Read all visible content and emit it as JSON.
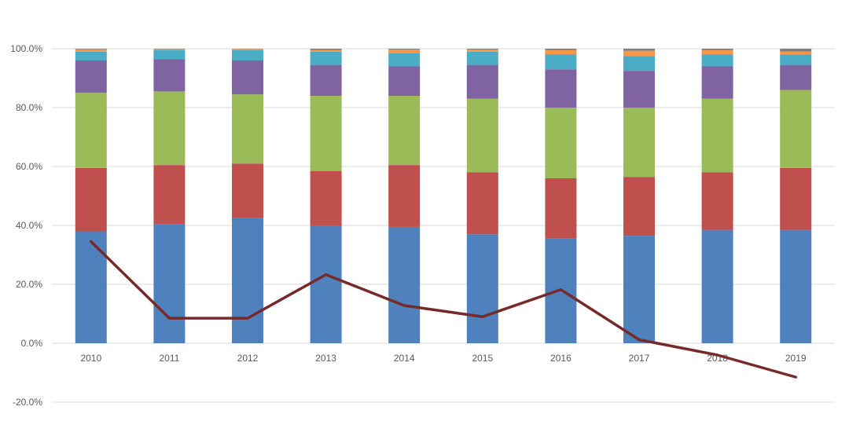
{
  "chart_data": {
    "type": "bar",
    "stacked": true,
    "categories": [
      "2010",
      "2011",
      "2012",
      "2013",
      "2014",
      "2015",
      "2016",
      "2017",
      "2018",
      "2019"
    ],
    "ylim": [
      -20,
      100
    ],
    "yticks": [
      -20,
      0,
      20,
      40,
      60,
      80,
      100
    ],
    "ytick_labels": [
      "-20.0%",
      "0.0%",
      "20.0%",
      "40.0%",
      "60.0%",
      "80.0%",
      "100.0%"
    ],
    "grid": true,
    "series": [
      {
        "color": "#4f81bd",
        "values": [
          38.0,
          40.5,
          42.5,
          40.0,
          39.5,
          37.0,
          35.5,
          36.5,
          38.5,
          38.5
        ]
      },
      {
        "color": "#c0504d",
        "values": [
          21.5,
          20.0,
          18.5,
          18.5,
          21.0,
          21.0,
          20.5,
          20.0,
          19.5,
          21.0
        ]
      },
      {
        "color": "#9bbb59",
        "values": [
          25.5,
          25.0,
          23.5,
          25.5,
          23.5,
          25.0,
          24.0,
          23.5,
          25.0,
          26.5
        ]
      },
      {
        "color": "#8064a2",
        "values": [
          11.0,
          11.0,
          11.5,
          10.5,
          10.0,
          11.5,
          13.0,
          12.5,
          11.0,
          8.5
        ]
      },
      {
        "color": "#4bacc6",
        "values": [
          3.0,
          3.0,
          3.5,
          4.5,
          4.5,
          4.5,
          5.0,
          5.0,
          4.0,
          3.5
        ]
      },
      {
        "color": "#f79646",
        "values": [
          0.8,
          0.3,
          0.4,
          0.6,
          1.2,
          0.7,
          1.5,
          1.8,
          1.5,
          1.0
        ]
      },
      {
        "color": "#7f7f7f",
        "values": [
          0.2,
          0.2,
          0.1,
          0.4,
          0.3,
          0.3,
          0.5,
          0.7,
          0.5,
          1.0
        ]
      }
    ],
    "line": {
      "color": "#772a2a",
      "values": [
        34.5,
        8.5,
        8.5,
        23.3,
        12.8,
        9.0,
        18.2,
        1.2,
        -4.0,
        -11.5
      ]
    }
  }
}
